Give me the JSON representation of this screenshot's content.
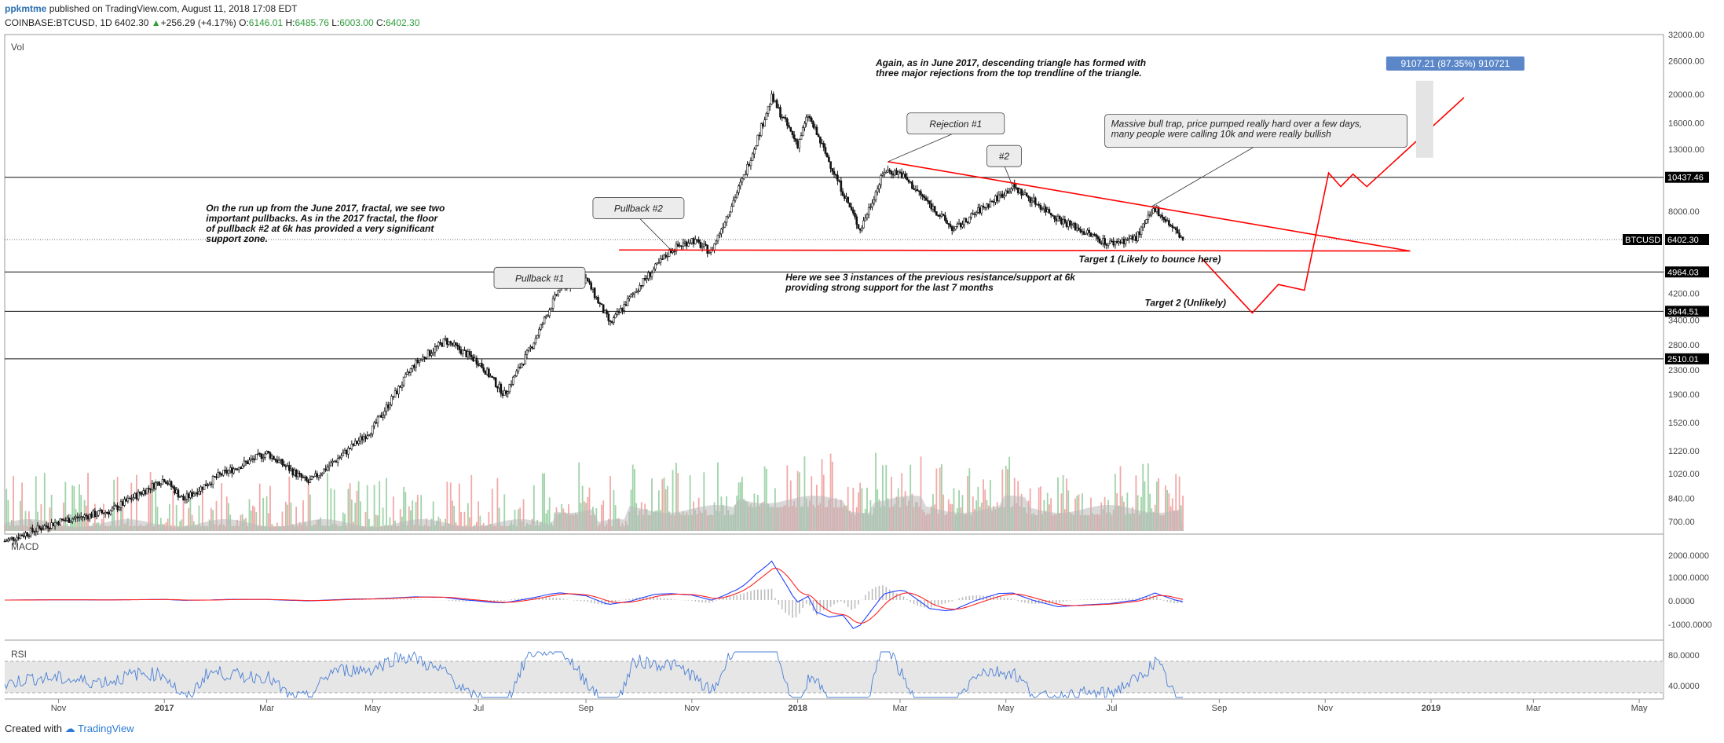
{
  "header": {
    "author": "ppkmtme",
    "published": "published on TradingView.com, August 11, 2018 17:08 EDT",
    "symbol": "COINBASE:BTCUSD, 1D",
    "price": "6402.30",
    "change": "+256.29 (+4.17%)",
    "o_label": "O:",
    "o": "6146.01",
    "h_label": "H:",
    "h": "6485.76",
    "l_label": "L:",
    "l": "6003.00",
    "c_label": "C:",
    "c": "6402.30"
  },
  "footer": {
    "created_with": "Created with",
    "brand": "TradingView"
  },
  "colors": {
    "up": "#2e9e3b",
    "down": "#e05050",
    "annotation_line": "#ff0000",
    "macd": "#2040ff",
    "signal": "#ff2020",
    "rsi": "#4a7fd6",
    "tag_bg": "#000000",
    "target_bg": "#5b87c9"
  },
  "chart_data": {
    "type": "line",
    "title": "",
    "series": [
      {
        "name": "",
        "x": [
          "2016-10-01",
          "2016-11-01",
          "2016-12-01",
          "2017-01-01",
          "2017-01-12",
          "2017-02-01",
          "2017-03-01",
          "2017-03-25",
          "2017-04-15",
          "2017-05-01",
          "2017-05-25",
          "2017-06-12",
          "2017-07-01",
          "2017-07-16",
          "2017-08-01",
          "2017-08-17",
          "2017-09-01",
          "2017-09-15",
          "2017-10-01",
          "2017-10-20",
          "2017-11-01",
          "2017-11-12",
          "2017-12-01",
          "2017-12-17",
          "2018-01-01",
          "2018-01-07",
          "2018-02-06",
          "2018-02-20",
          "2018-03-01",
          "2018-04-01",
          "2018-04-15",
          "2018-05-05",
          "2018-06-01",
          "2018-06-29",
          "2018-07-15",
          "2018-07-26",
          "2018-08-11"
        ],
        "y": [
          600,
          700,
          760,
          980,
          830,
          1000,
          1200,
          950,
          1200,
          1450,
          2400,
          2900,
          2450,
          1900,
          2800,
          4400,
          4700,
          3300,
          4400,
          5900,
          6400,
          5800,
          10500,
          19500,
          13500,
          17000,
          6900,
          11000,
          10800,
          6900,
          8000,
          9700,
          7500,
          6200,
          6500,
          8200,
          6402
        ]
      }
    ],
    "indicators": {
      "macd": {
        "label": "MACD",
        "ticks": [
          "2000.0000",
          "1000.0000",
          "0.0000",
          "-1000.0000"
        ]
      },
      "rsi": {
        "label": "RSI",
        "ticks": [
          "80.0000",
          "40.0000"
        ]
      },
      "volume": {
        "label": "Vol"
      }
    },
    "axes": {
      "x_ticks": [
        {
          "label": "Nov",
          "date": "2016-11-01"
        },
        {
          "label": "2017",
          "date": "2017-01-01"
        },
        {
          "label": "Mar",
          "date": "2017-03-01"
        },
        {
          "label": "May",
          "date": "2017-05-01"
        },
        {
          "label": "Jul",
          "date": "2017-07-01"
        },
        {
          "label": "Sep",
          "date": "2017-09-01"
        },
        {
          "label": "Nov",
          "date": "2017-11-01"
        },
        {
          "label": "2018",
          "date": "2018-01-01"
        },
        {
          "label": "Mar",
          "date": "2018-03-01"
        },
        {
          "label": "May",
          "date": "2018-05-01"
        },
        {
          "label": "Jul",
          "date": "2018-07-01"
        },
        {
          "label": "Sep",
          "date": "2018-09-01"
        },
        {
          "label": "Nov",
          "date": "2018-11-01"
        },
        {
          "label": "2019",
          "date": "2019-01-01"
        },
        {
          "label": "Mar",
          "date": "2019-03-01"
        },
        {
          "label": "May",
          "date": "2019-05-01"
        }
      ],
      "y_scale": "log",
      "y_ticks": [
        32000,
        26000,
        20000,
        16000,
        13000,
        10437.46,
        8000,
        6402.3,
        4964.03,
        4200,
        3644.51,
        3400,
        2800,
        2510.01,
        2300,
        1900,
        1520,
        1220,
        1020,
        840,
        700
      ],
      "y_tick_labels": [
        "32000.00",
        "26000.00",
        "20000.00",
        "16000.00",
        "13000.00",
        "10437.46",
        "8000.00",
        "6402.30",
        "4964.03",
        "4200.00",
        "3644.51",
        "3400.00",
        "2800.00",
        "2510.01",
        "2300.00",
        "1900.00",
        "1520.00",
        "1220.00",
        "1020.00",
        "840.00",
        "700.00"
      ],
      "ylim": [
        650,
        32000
      ],
      "xlim": [
        "2016-10-01",
        "2019-05-15"
      ]
    },
    "horizontal_levels": [
      {
        "price": 10437.46,
        "label": "10437.46"
      },
      {
        "price": 4964.03,
        "label": "4964.03"
      },
      {
        "price": 3644.51,
        "label": "3644.51"
      },
      {
        "price": 2510.01,
        "label": "2510.01"
      }
    ],
    "last_price_tag": {
      "symbol": "BTCUSD",
      "price": 6402.3,
      "label": "6402.30"
    },
    "target_label": {
      "date": "2019-01-15",
      "price": 25500,
      "text": "9107.21 (87.35%) 910721"
    },
    "trendlines": [
      {
        "name": "descending-top",
        "from": {
          "date": "2018-02-22",
          "price": 11800
        },
        "to": {
          "date": "2018-12-20",
          "price": 5850
        }
      },
      {
        "name": "support-floor",
        "from": {
          "date": "2017-09-20",
          "price": 5900
        },
        "to": {
          "date": "2018-12-20",
          "price": 5850
        }
      }
    ],
    "projection": [
      {
        "date": "2018-08-22",
        "price": 5500
      },
      {
        "date": "2018-09-20",
        "price": 3600
      },
      {
        "date": "2018-10-05",
        "price": 4500
      },
      {
        "date": "2018-10-20",
        "price": 4300
      },
      {
        "date": "2018-11-03",
        "price": 10800
      },
      {
        "date": "2018-11-10",
        "price": 9700
      },
      {
        "date": "2018-11-17",
        "price": 10700
      },
      {
        "date": "2018-11-25",
        "price": 9700
      },
      {
        "date": "2019-01-20",
        "price": 19500
      }
    ],
    "callouts": [
      {
        "text": "Pullback #1",
        "date": "2017-07-10",
        "price": 5150,
        "pointer": {
          "date": "2017-08-27",
          "price": 4700
        }
      },
      {
        "text": "Pullback #2",
        "date": "2017-09-05",
        "price": 8900,
        "pointer": {
          "date": "2017-10-20",
          "price": 5900
        }
      },
      {
        "text": "Rejection #1",
        "date": "2018-03-05",
        "price": 17300,
        "pointer": {
          "date": "2018-02-22",
          "price": 11800
        }
      },
      {
        "text": "#2",
        "date": "2018-04-20",
        "price": 13400,
        "pointer": {
          "date": "2018-05-05",
          "price": 9700
        }
      },
      {
        "text": "Massive bull trap, price pumped really hard over a few days, many people were calling 10k and were really bullish",
        "date": "2018-06-27",
        "price": 17100,
        "pointer": {
          "date": "2018-07-24",
          "price": 8300
        }
      }
    ],
    "notes": [
      {
        "id": "note-triangle",
        "text": "Again, as in June 2017, descending triangle has formed with three major rejections from the top trendline of the triangle.",
        "date": "2018-02-15",
        "price": 25000
      },
      {
        "id": "note-fractal",
        "text": "On the run up from the June 2017, fractal, we see two important pullbacks. As in the 2017 fractal, the floor of pullback #2 at 6k has provided a very significant support zone.",
        "date": "2017-01-25",
        "price": 8000
      },
      {
        "id": "note-support",
        "text": "Here we see 3 instances of the previous resistance/support at 6k providing strong support for the last 7 months",
        "date": "2017-12-25",
        "price": 4650
      },
      {
        "id": "note-target1",
        "text": "Target 1 (Likely to bounce here)",
        "date": "2018-06-12",
        "price": 5350
      },
      {
        "id": "note-target2",
        "text": "Target 2 (Unlikely)",
        "date": "2018-07-20",
        "price": 3800
      }
    ]
  }
}
